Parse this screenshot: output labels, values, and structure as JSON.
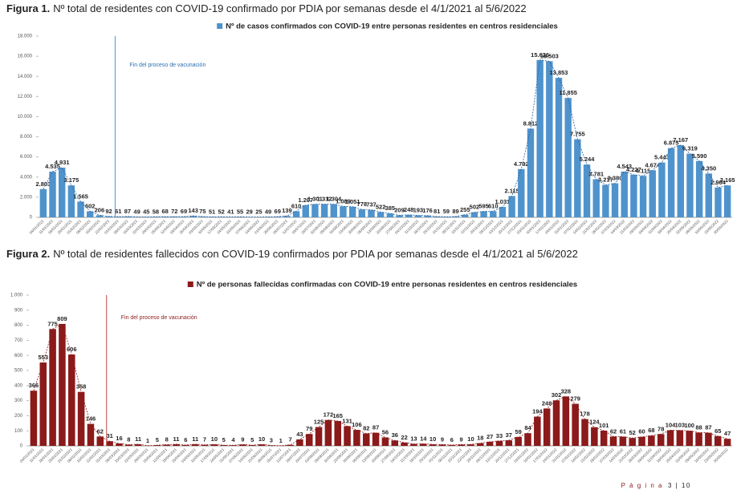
{
  "chart_data": [
    {
      "type": "bar",
      "figure_label": "Figura 1.",
      "title": "Nº total de residentes con COVID-19 confirmado por PDIA por semanas desde el 4/1/2021 al 5/6/2022",
      "annotation": {
        "text": "Fin del proceso de vacunación",
        "after": "22/02/2021"
      },
      "categories": [
        "04/01/2021",
        "11/01/2021",
        "18/01/2021",
        "25/01/2021",
        "01/02/2021",
        "08/02/2021",
        "15/02/2021",
        "22/02/2021",
        "01/03/2021",
        "08/03/2021",
        "15/03/2021",
        "22/03/2021",
        "29/03/2021",
        "05/04/2021",
        "12/04/2021",
        "19/04/2021",
        "26/04/2021",
        "03/05/2021",
        "10/05/2021",
        "17/05/2021",
        "24/05/2021",
        "31/05/2021",
        "07/06/2021",
        "14/06/2021",
        "21/06/2021",
        "28/06/2021",
        "05/07/2021",
        "12/07/2021",
        "19/07/2021",
        "26/07/2021",
        "02/08/2021",
        "09/08/2021",
        "16/08/2021",
        "23/08/2021",
        "30/08/2021",
        "06/09/2021",
        "13/09/2021",
        "20/09/2021",
        "27/09/2021",
        "04/10/2021",
        "11/10/2021",
        "18/10/2021",
        "25/10/2021",
        "01/11/2021",
        "08/11/2021",
        "15/11/2021",
        "22/11/2021",
        "29/11/2021",
        "06/12/2021",
        "13/12/2021",
        "20/12/2021",
        "27/12/2021",
        "03/01/2022",
        "10/01/2022",
        "17/01/2022",
        "24/01/2022",
        "31/01/2022",
        "07/02/2022",
        "14/02/2022",
        "21/02/2022",
        "28/02/2022",
        "07/03/2022",
        "14/03/2022",
        "21/03/2022",
        "28/03/2022",
        "04/04/2022",
        "11/04/2022",
        "18/04/2022",
        "25/04/2022",
        "02/05/2022",
        "09/05/2022",
        "16/05/2022",
        "23/05/2022",
        "30/05/2022"
      ],
      "series": [
        {
          "name": "Nº de casos confirmados con COVID-19 entre personas residentes en centros residenciales",
          "color": "#4f93cd",
          "values": [
            2803,
            4535,
            4931,
            3175,
            1565,
            602,
            206,
            92,
            61,
            87,
            49,
            45,
            58,
            68,
            72,
            69,
            143,
            75,
            51,
            52,
            41,
            55,
            29,
            25,
            49,
            69,
            139,
            610,
            1207,
            1301,
            1312,
            1304,
            1089,
            1051,
            778,
            737,
            522,
            385,
            209,
            248,
            193,
            176,
            81,
            59,
            89,
            255,
            502,
            595,
            610,
            1031,
            2115,
            4792,
            8812,
            15626,
            15503,
            13853,
            11855,
            7755,
            5244,
            3781,
            3217,
            3380,
            4543,
            4227,
            4115,
            4674,
            5443,
            6875,
            7167,
            6319,
            5590,
            4350,
            2964,
            3165
          ],
          "value_labels": [
            "2.803",
            "4.535",
            "4.931",
            "3.175",
            "1.565",
            "602",
            "206",
            "92",
            "61",
            "87",
            "49",
            "45",
            "58",
            "68",
            "72",
            "69",
            "143",
            "75",
            "51",
            "52",
            "41",
            "55",
            "29",
            "25",
            "49",
            "69",
            "139",
            "610",
            "1.207",
            "1.301",
            "1.312",
            "1.304",
            "1.089",
            "1.051",
            "778",
            "737",
            "522",
            "385",
            "209",
            "248",
            "193",
            "176",
            "81",
            "59",
            "89",
            "255",
            "502",
            "595",
            "610",
            "1.031",
            "2.115",
            "4.792",
            "8.812",
            "15.626",
            "15.503",
            "13.853",
            "11.855",
            "7.755",
            "5.244",
            "3.781",
            "3.217",
            "3.380",
            "4.543",
            "4.227",
            "4.115",
            "4.674",
            "5.443",
            "6.875",
            "7.167",
            "6.319",
            "5.590",
            "4.350",
            "2.964",
            "3.165"
          ]
        }
      ],
      "ylim": [
        0,
        18000
      ],
      "yticks": [
        0,
        {
          "value": 2000,
          "label": "2.000"
        },
        {
          "value": 4000,
          "label": "4.000"
        },
        {
          "value": 6000,
          "label": "6.000"
        },
        {
          "value": 8000,
          "label": "8.000"
        },
        {
          "value": 10000,
          "label": "10.000"
        },
        {
          "value": 12000,
          "label": "12.000"
        },
        {
          "value": 14000,
          "label": "14.000"
        },
        {
          "value": 16000,
          "label": "16.000"
        },
        {
          "value": 18000,
          "label": "18.000"
        }
      ]
    },
    {
      "type": "bar",
      "figure_label": "Figura 2.",
      "title": "Nº total de residentes fallecidos con COVID-19 confirmados por PDIA por semanas desde el 4/1/2021 al 5/6/2022",
      "annotation": {
        "text": "Fin del proceso de vacunación",
        "after": "22/02/2021"
      },
      "categories": [
        "04/01/2021",
        "11/01/2021",
        "18/01/2021",
        "25/01/2021",
        "01/02/2021",
        "08/02/2021",
        "15/02/2021",
        "22/02/2021",
        "01/03/2021",
        "08/03/2021",
        "15/03/2021",
        "22/03/2021",
        "29/03/2021",
        "05/04/2021",
        "12/04/2021",
        "19/04/2021",
        "26/04/2021",
        "03/05/2021",
        "10/05/2021",
        "17/05/2021",
        "24/05/2021",
        "31/05/2021",
        "07/06/2021",
        "14/06/2021",
        "21/06/2021",
        "28/06/2021",
        "05/07/2021",
        "12/07/2021",
        "19/07/2021",
        "26/07/2021",
        "02/08/2021",
        "09/08/2021",
        "16/08/2021",
        "23/08/2021",
        "30/08/2021",
        "06/09/2021",
        "13/09/2021",
        "20/09/2021",
        "27/09/2021",
        "04/10/2021",
        "11/10/2021",
        "18/10/2021",
        "25/10/2021",
        "01/11/2021",
        "08/11/2021",
        "15/11/2021",
        "22/11/2021",
        "29/11/2021",
        "06/12/2021",
        "13/12/2021",
        "20/12/2021",
        "27/12/2021",
        "03/01/2022",
        "10/01/2022",
        "17/01/2022",
        "24/01/2022",
        "31/01/2022",
        "07/02/2022",
        "14/02/2022",
        "21/02/2022",
        "28/02/2022",
        "07/03/2022",
        "14/03/2022",
        "21/03/2022",
        "28/03/2022",
        "04/04/2022",
        "11/04/2022",
        "18/04/2022",
        "25/04/2022",
        "02/05/2022",
        "09/05/2022",
        "16/05/2022",
        "23/05/2022",
        "30/05/2022"
      ],
      "series": [
        {
          "name": "Nº de personas fallecidas confirmadas con COVID-19 entre personas residentes en centros residenciales",
          "color": "#8b1a1a",
          "values": [
            366,
            553,
            775,
            809,
            606,
            358,
            146,
            62,
            31,
            16,
            8,
            11,
            1,
            5,
            8,
            11,
            6,
            11,
            7,
            10,
            5,
            4,
            9,
            5,
            10,
            3,
            1,
            7,
            43,
            79,
            125,
            172,
            165,
            131,
            106,
            82,
            87,
            56,
            36,
            22,
            13,
            14,
            10,
            9,
            6,
            9,
            10,
            18,
            27,
            33,
            37,
            59,
            84,
            194,
            248,
            302,
            328,
            279,
            178,
            124,
            101,
            62,
            61,
            52,
            60,
            68,
            78,
            104,
            103,
            100,
            88,
            87,
            65,
            47
          ]
        }
      ],
      "ylim": [
        0,
        1000
      ],
      "yticks": [
        0,
        100,
        200,
        300,
        400,
        500,
        600,
        700,
        800,
        900,
        {
          "value": 1000,
          "label": "1.000"
        }
      ]
    }
  ],
  "footer": {
    "page_word": "P á g i n a",
    "page_number": "3 | 10"
  }
}
